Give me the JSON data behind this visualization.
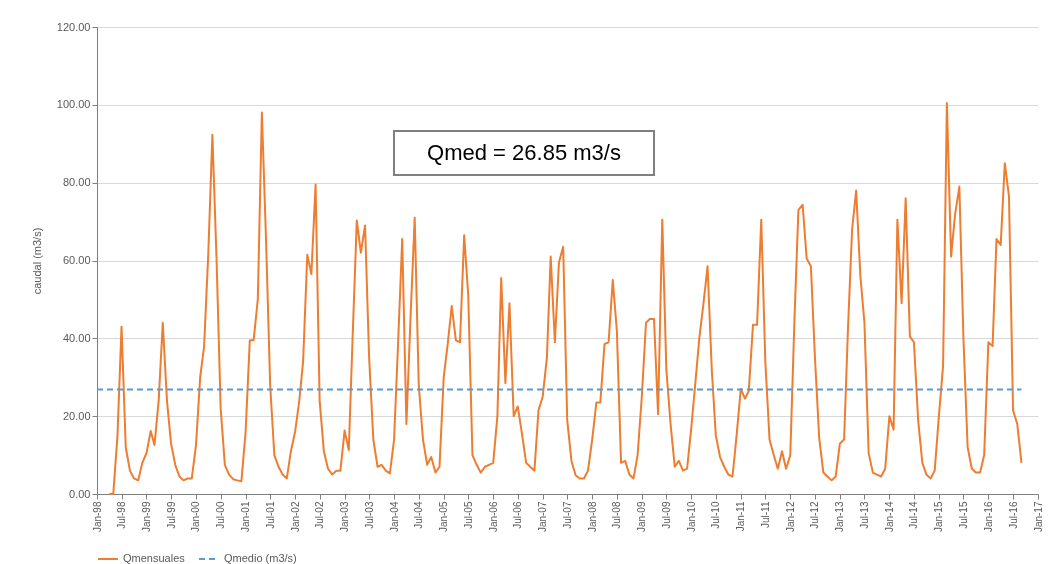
{
  "chart_data": {
    "type": "line",
    "ylabel": "caudal (m3/s)",
    "annotations": [
      "Qmed = 26.85 m3/s"
    ],
    "xlim": [
      "1998-01",
      "2017-01"
    ],
    "xticks": [
      {
        "value": "1998-01",
        "label": "Jan-98"
      },
      {
        "value": "1998-07",
        "label": "Jul-98"
      },
      {
        "value": "1999-01",
        "label": "Jan-99"
      },
      {
        "value": "1999-07",
        "label": "Jul-99"
      },
      {
        "value": "2000-01",
        "label": "Jan-00"
      },
      {
        "value": "2000-07",
        "label": "Jul-00"
      },
      {
        "value": "2001-01",
        "label": "Jan-01"
      },
      {
        "value": "2001-07",
        "label": "Jul-01"
      },
      {
        "value": "2002-01",
        "label": "Jan-02"
      },
      {
        "value": "2002-07",
        "label": "Jul-02"
      },
      {
        "value": "2003-01",
        "label": "Jan-03"
      },
      {
        "value": "2003-07",
        "label": "Jul-03"
      },
      {
        "value": "2004-01",
        "label": "Jan-04"
      },
      {
        "value": "2004-07",
        "label": "Jul-04"
      },
      {
        "value": "2005-01",
        "label": "Jan-05"
      },
      {
        "value": "2005-07",
        "label": "Jul-05"
      },
      {
        "value": "2006-01",
        "label": "Jan-06"
      },
      {
        "value": "2006-07",
        "label": "Jul-06"
      },
      {
        "value": "2007-01",
        "label": "Jan-07"
      },
      {
        "value": "2007-07",
        "label": "Jul-07"
      },
      {
        "value": "2008-01",
        "label": "Jan-08"
      },
      {
        "value": "2008-07",
        "label": "Jul-08"
      },
      {
        "value": "2009-01",
        "label": "Jan-09"
      },
      {
        "value": "2009-07",
        "label": "Jul-09"
      },
      {
        "value": "2010-01",
        "label": "Jan-10"
      },
      {
        "value": "2010-07",
        "label": "Jul-10"
      },
      {
        "value": "2011-01",
        "label": "Jan-11"
      },
      {
        "value": "2011-07",
        "label": "Jul-11"
      },
      {
        "value": "2012-01",
        "label": "Jan-12"
      },
      {
        "value": "2012-07",
        "label": "Jul-12"
      },
      {
        "value": "2013-01",
        "label": "Jan-13"
      },
      {
        "value": "2013-07",
        "label": "Jul-13"
      },
      {
        "value": "2014-01",
        "label": "Jan-14"
      },
      {
        "value": "2014-07",
        "label": "Jul-14"
      },
      {
        "value": "2015-01",
        "label": "Jan-15"
      },
      {
        "value": "2015-07",
        "label": "Jul-15"
      },
      {
        "value": "2016-01",
        "label": "Jan-16"
      },
      {
        "value": "2016-07",
        "label": "Jul-16"
      },
      {
        "value": "2017-01",
        "label": "Jan-17"
      }
    ],
    "ylim": [
      0,
      120
    ],
    "yticks": [
      {
        "value": 0,
        "label": "0.00"
      },
      {
        "value": 20,
        "label": "20.00"
      },
      {
        "value": 40,
        "label": "40.00"
      },
      {
        "value": 60,
        "label": "60.00"
      },
      {
        "value": 80,
        "label": "80.00"
      },
      {
        "value": 100,
        "label": "100.00"
      },
      {
        "value": 120,
        "label": "120.00"
      }
    ],
    "grid": "y",
    "legend": "bottom",
    "series": [
      {
        "name": "Qmensuales",
        "color": "#ed7d31",
        "line_style": "solid",
        "x": [
          "1998-04",
          "1998-05",
          "1998-06",
          "1998-07",
          "1998-08",
          "1998-09",
          "1998-10",
          "1998-11",
          "1998-12",
          "1999-01",
          "1999-02",
          "1999-03",
          "1999-04",
          "1999-05",
          "1999-06",
          "1999-07",
          "1999-08",
          "1999-09",
          "1999-10",
          "1999-11",
          "1999-12",
          "2000-01",
          "2000-02",
          "2000-03",
          "2000-04",
          "2000-05",
          "2000-06",
          "2000-07",
          "2000-08",
          "2000-09",
          "2000-10",
          "2000-11",
          "2000-12",
          "2001-01",
          "2001-02",
          "2001-03",
          "2001-04",
          "2001-05",
          "2001-06",
          "2001-07",
          "2001-08",
          "2001-09",
          "2001-10",
          "2001-11",
          "2001-12",
          "2002-01",
          "2002-02",
          "2002-03",
          "2002-04",
          "2002-05",
          "2002-06",
          "2002-07",
          "2002-08",
          "2002-09",
          "2002-10",
          "2002-11",
          "2002-12",
          "2003-01",
          "2003-02",
          "2003-03",
          "2003-04",
          "2003-05",
          "2003-06",
          "2003-07",
          "2003-08",
          "2003-09",
          "2003-10",
          "2003-11",
          "2003-12",
          "2004-01",
          "2004-02",
          "2004-03",
          "2004-04",
          "2004-05",
          "2004-06",
          "2004-07",
          "2004-08",
          "2004-09",
          "2004-10",
          "2004-11",
          "2004-12",
          "2005-01",
          "2005-02",
          "2005-03",
          "2005-04",
          "2005-05",
          "2005-06",
          "2005-07",
          "2005-08",
          "2005-09",
          "2005-10",
          "2005-11",
          "2005-12",
          "2006-01",
          "2006-02",
          "2006-03",
          "2006-04",
          "2006-05",
          "2006-06",
          "2006-07",
          "2006-08",
          "2006-09",
          "2006-10",
          "2006-11",
          "2006-12",
          "2007-01",
          "2007-02",
          "2007-03",
          "2007-04",
          "2007-05",
          "2007-06",
          "2007-07",
          "2007-08",
          "2007-09",
          "2007-10",
          "2007-11",
          "2007-12",
          "2008-01",
          "2008-02",
          "2008-03",
          "2008-04",
          "2008-05",
          "2008-06",
          "2008-07",
          "2008-08",
          "2008-09",
          "2008-10",
          "2008-11",
          "2008-12",
          "2009-01",
          "2009-02",
          "2009-03",
          "2009-04",
          "2009-05",
          "2009-06",
          "2009-07",
          "2009-08",
          "2009-09",
          "2009-10",
          "2009-11",
          "2009-12",
          "2010-01",
          "2010-02",
          "2010-03",
          "2010-04",
          "2010-05",
          "2010-06",
          "2010-07",
          "2010-08",
          "2010-09",
          "2010-10",
          "2010-11",
          "2010-12",
          "2011-01",
          "2011-02",
          "2011-03",
          "2011-04",
          "2011-05",
          "2011-06",
          "2011-07",
          "2011-08",
          "2011-09",
          "2011-10",
          "2011-11",
          "2011-12",
          "2012-01",
          "2012-02",
          "2012-03",
          "2012-04",
          "2012-05",
          "2012-06",
          "2012-07",
          "2012-08",
          "2012-09",
          "2012-10",
          "2012-11",
          "2012-12",
          "2013-01",
          "2013-02",
          "2013-03",
          "2013-04",
          "2013-05",
          "2013-06",
          "2013-07",
          "2013-08",
          "2013-09",
          "2013-10",
          "2013-11",
          "2013-12",
          "2014-01",
          "2014-02",
          "2014-03",
          "2014-04",
          "2014-05",
          "2014-06",
          "2014-07",
          "2014-08",
          "2014-09",
          "2014-10",
          "2014-11",
          "2014-12",
          "2015-01",
          "2015-02",
          "2015-03",
          "2015-04",
          "2015-05",
          "2015-06",
          "2015-07",
          "2015-08",
          "2015-09",
          "2015-10",
          "2015-11",
          "2015-12",
          "2016-01",
          "2016-02",
          "2016-03",
          "2016-04",
          "2016-05",
          "2016-06",
          "2016-07",
          "2016-08",
          "2016-09"
        ],
        "values": [
          0,
          0,
          15,
          43,
          12,
          6,
          4,
          3.5,
          8,
          10.5,
          16.2,
          12.6,
          24,
          44,
          24,
          13,
          7.5,
          4.5,
          3.5,
          4,
          4,
          12.5,
          30,
          38,
          62,
          92.3,
          60,
          22,
          7.5,
          5,
          3.8,
          3.5,
          3.3,
          16,
          39.5,
          39.5,
          50,
          98,
          65,
          28,
          10,
          7,
          5,
          4,
          11,
          16,
          24,
          34,
          61.5,
          56.5,
          79.5,
          24,
          11,
          6.5,
          5,
          6,
          6,
          16.3,
          11.3,
          40,
          70.3,
          62,
          69,
          35,
          14,
          7,
          7.5,
          6,
          5.3,
          14,
          40,
          65.5,
          18,
          45,
          71,
          28,
          14,
          7.5,
          9.5,
          5.5,
          7,
          30,
          39,
          48.3,
          39.5,
          39,
          66.5,
          51,
          10,
          7.5,
          5.5,
          7,
          7.5,
          8,
          20,
          55.5,
          28.5,
          49,
          20,
          22.5,
          15.5,
          8,
          7,
          6,
          21.5,
          25,
          35,
          61,
          39,
          59.5,
          63.5,
          19,
          8.5,
          4.8,
          4,
          4,
          6,
          14,
          23.5,
          23.5,
          38.5,
          39,
          55,
          42,
          8,
          8.5,
          5,
          4,
          10,
          25,
          44,
          45,
          45,
          20.5,
          70.5,
          32,
          18,
          7,
          8.5,
          6,
          6.5,
          17,
          29,
          40,
          49,
          58.5,
          32,
          15,
          9.5,
          7,
          5,
          4.5,
          15,
          27,
          24.5,
          26.5,
          43.5,
          43.5,
          70.5,
          34,
          14,
          10,
          6.5,
          11,
          6.5,
          10,
          45,
          73,
          74.3,
          60.5,
          58.5,
          35,
          14.5,
          5.5,
          4.5,
          3.5,
          4.5,
          13,
          14,
          42,
          68,
          78,
          56,
          44,
          10.5,
          5.5,
          5,
          4.5,
          6.5,
          20,
          16.5,
          70.5,
          49,
          76,
          40.5,
          39,
          19,
          8,
          5,
          4,
          6,
          20,
          33,
          100.5,
          61,
          72,
          79,
          40,
          12,
          6.5,
          5.5,
          5.5,
          10,
          39,
          38,
          65.5,
          64,
          85,
          76.5,
          21.5,
          18,
          8
        ]
      },
      {
        "name": "Qmedio (m3/s)",
        "color": "#5b9bd5",
        "line_style": "dashed",
        "x": [
          "1998-01",
          "2016-09"
        ],
        "values": [
          26.85,
          26.85
        ]
      }
    ]
  }
}
